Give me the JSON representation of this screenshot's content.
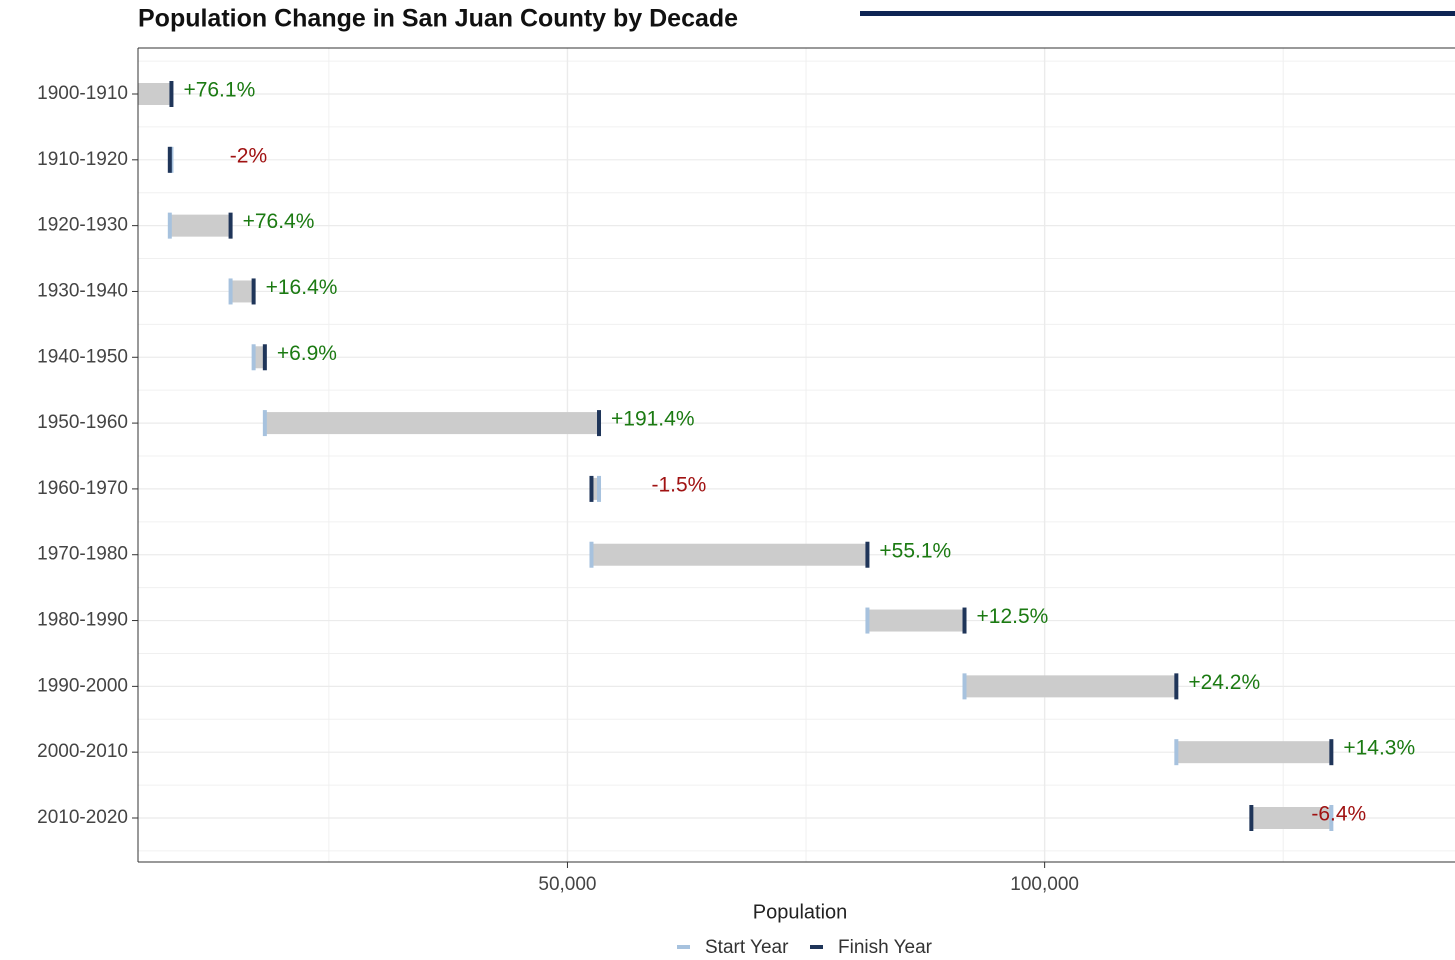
{
  "chart_data": {
    "type": "dumbbell",
    "title": "Population Change in San Juan County by Decade",
    "x_label": "Population",
    "categories": [
      "1900-1910",
      "1910-1920",
      "1920-1930",
      "1930-1940",
      "1940-1950",
      "1950-1960",
      "1960-1970",
      "1970-1980",
      "1980-1990",
      "1990-2000",
      "2000-2010",
      "2010-2020"
    ],
    "series": [
      {
        "name": "Start Year",
        "color": "#a7c2de",
        "values": [
          4829,
          8504,
          8333,
          14701,
          17115,
          18292,
          53306,
          52517,
          81433,
          91605,
          113801,
          130044
        ]
      },
      {
        "name": "Finish Year",
        "color": "#1f3559",
        "values": [
          8504,
          8333,
          14701,
          17115,
          18292,
          53306,
          52517,
          81433,
          91605,
          113801,
          130044,
          121661
        ]
      }
    ],
    "change": {
      "values": [
        76.1,
        -2,
        76.4,
        16.4,
        6.9,
        191.4,
        -1.5,
        55.1,
        12.5,
        24.2,
        14.3,
        -6.4
      ],
      "value_labels": [
        "+76.1%",
        "-2%",
        "+76.4%",
        "+16.4%",
        "+6.9%",
        "+191.4%",
        "-1.5%",
        "+55.1%",
        "+12.5%",
        "+24.2%",
        "+14.3%",
        "-6.4%"
      ],
      "positive_color": "#1b7a12",
      "negative_color": "#a01212"
    },
    "bar_color": "#cccccc",
    "xlim": [
      5000,
      143000
    ],
    "xticks": [
      {
        "value": 50000,
        "label": "50,000"
      },
      {
        "value": 100000,
        "label": "100,000"
      }
    ],
    "minor_xticks": [
      25000,
      75000,
      125000
    ],
    "grid": true,
    "legend": "bottom"
  }
}
